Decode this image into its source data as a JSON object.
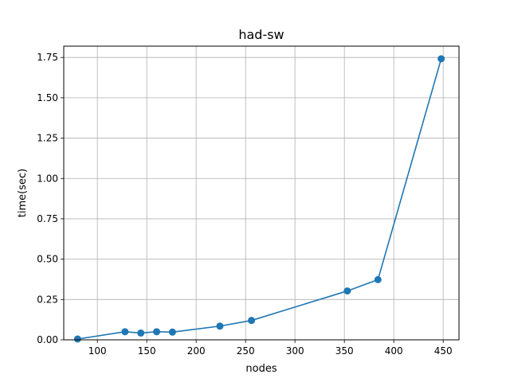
{
  "chart_data": {
    "type": "line",
    "title": "had-sw",
    "xlabel": "nodes",
    "ylabel": "time(sec)",
    "xlim": [
      66,
      466
    ],
    "ylim": [
      0,
      1.82
    ],
    "xticks": [
      100,
      150,
      200,
      250,
      300,
      350,
      400,
      450
    ],
    "xtick_labels": [
      "100",
      "150",
      "200",
      "250",
      "300",
      "350",
      "400",
      "450"
    ],
    "yticks": [
      0.0,
      0.25,
      0.5,
      0.75,
      1.0,
      1.25,
      1.5,
      1.75
    ],
    "ytick_labels": [
      "0.00",
      "0.25",
      "0.50",
      "0.75",
      "1.00",
      "1.25",
      "1.50",
      "1.75"
    ],
    "grid": true,
    "marker": "circle",
    "series": [
      {
        "color": "#1f77b4",
        "x": [
          80,
          128,
          144,
          160,
          176,
          224,
          256,
          353,
          384,
          448
        ],
        "y": [
          0.005,
          0.05,
          0.042,
          0.05,
          0.048,
          0.085,
          0.12,
          0.303,
          0.373,
          1.742
        ]
      }
    ]
  }
}
